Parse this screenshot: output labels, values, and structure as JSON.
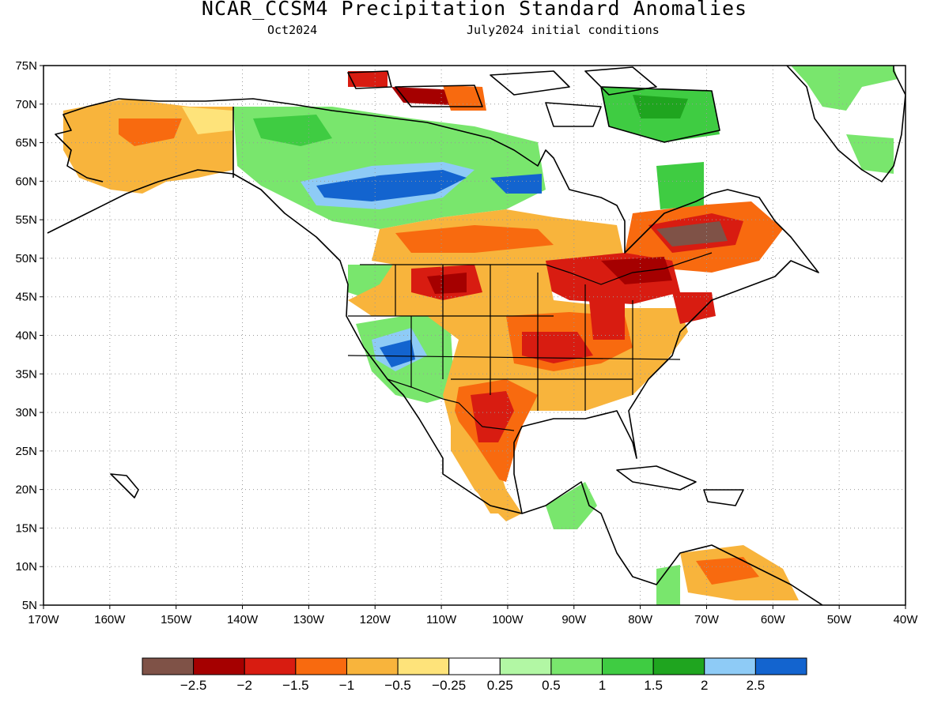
{
  "header": {
    "title": "NCAR_CCSM4 Precipitation Standard Anomalies",
    "target_month": "Oct2024",
    "initial_conditions": "July2024 initial conditions"
  },
  "map": {
    "lat_ticks": [
      "75N",
      "70N",
      "65N",
      "60N",
      "55N",
      "50N",
      "45N",
      "40N",
      "35N",
      "30N",
      "25N",
      "20N",
      "15N",
      "10N",
      "5N"
    ],
    "lon_ticks": [
      "170W",
      "160W",
      "150W",
      "140W",
      "130W",
      "120W",
      "110W",
      "100W",
      "90W",
      "80W",
      "70W",
      "60W",
      "50W",
      "40W"
    ],
    "lat_range": [
      5,
      75
    ],
    "lon_range": [
      -170,
      -40
    ]
  },
  "legend": {
    "colors": [
      "#7f5247",
      "#a50000",
      "#d81c11",
      "#f86a0f",
      "#f8b43c",
      "#fee37a",
      "#ffffff",
      "#b2f7a4",
      "#79e66d",
      "#3fcc42",
      "#1fa51f",
      "#8ecbf6",
      "#1364cf"
    ],
    "labels": [
      "-2.5",
      "-2",
      "-1.5",
      "-1",
      "-0.5",
      "-0.25",
      "0.25",
      "0.5",
      "1",
      "1.5",
      "2",
      "2.5"
    ]
  },
  "anomaly_colors": {
    "very_dry": "#7f5247",
    "dry3": "#a50000",
    "dry2": "#d81c11",
    "dry1": "#f86a0f",
    "dry05": "#f8b43c",
    "dry025": "#fee37a",
    "wet025": "#b2f7a4",
    "wet05": "#79e66d",
    "wet1": "#3fcc42",
    "wet15": "#1fa51f",
    "wet2": "#8ecbf6",
    "wet25": "#1364cf"
  }
}
